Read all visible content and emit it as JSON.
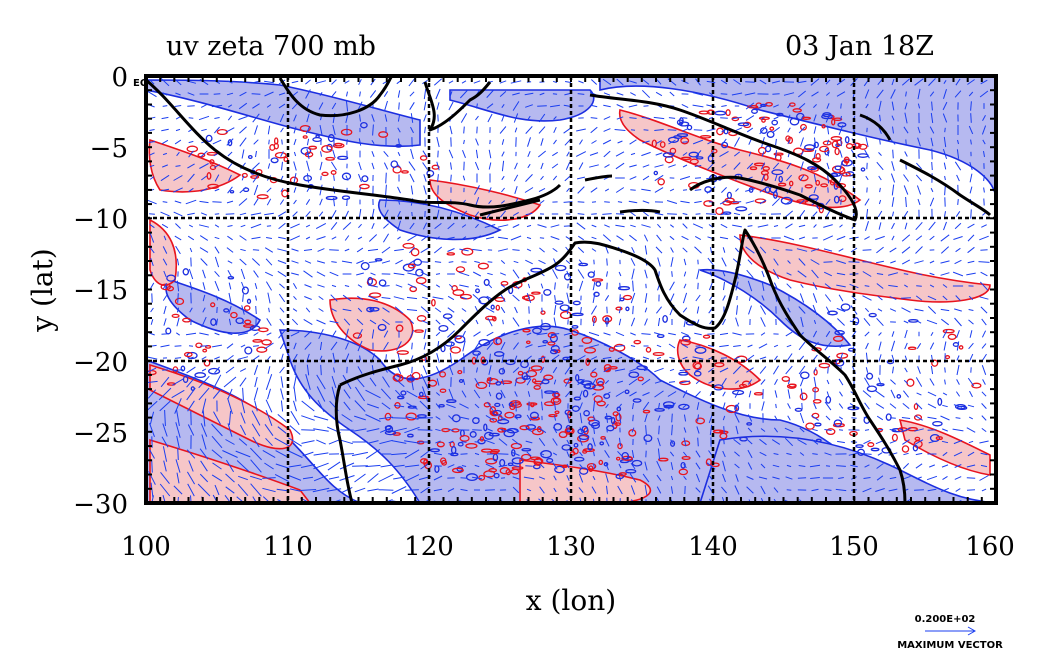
{
  "title_left": "uv zeta 700 mb",
  "title_right": "03 Jan 18Z",
  "xaxis_label": "x (lon)",
  "yaxis_label": "y (lat)",
  "eq_label": "EQ",
  "vector_scale_value": "0.200E+02",
  "vector_scale_label": "MAXIMUM VECTOR",
  "colors": {
    "frame": "#000000",
    "positive_fill": "#f6c6c8",
    "positive_line": "#e8141e",
    "negative_fill": "#b6b9f0",
    "negative_line": "#1c2ee0",
    "vectors": "#1a3ef0",
    "coast": "#000000"
  },
  "chart_data": {
    "type": "map",
    "title": "uv zeta 700 mb",
    "time": "03 Jan 18Z",
    "xlabel": "x (lon)",
    "ylabel": "y (lat)",
    "xlim": [
      100,
      160
    ],
    "ylim": [
      -30,
      0
    ],
    "xticks": [
      100,
      110,
      120,
      130,
      140,
      150,
      160
    ],
    "yticks": [
      0,
      -5,
      -10,
      -15,
      -20,
      -25,
      -30
    ],
    "ytick_labels": [
      "0",
      "−5",
      "−10",
      "−15",
      "−20",
      "−25",
      "−30"
    ],
    "gridlines_lon": [
      110,
      120,
      130,
      140,
      150
    ],
    "gridlines_lat": [
      -10,
      -20
    ],
    "fields": [
      "u-v wind vectors (700 mb)",
      "relative vorticity zeta (700 mb)"
    ],
    "legend": "vector scale bottom-right"
  }
}
